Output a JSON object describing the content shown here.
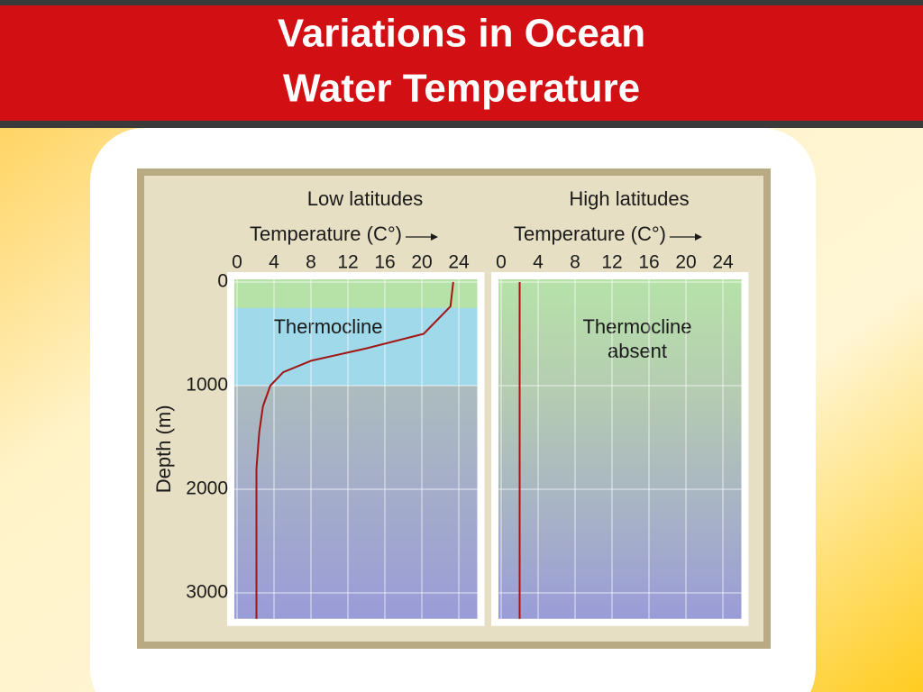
{
  "header": {
    "title": [
      "Variations in Ocean",
      "Water Temperature"
    ]
  },
  "chart_data": [
    {
      "type": "line",
      "title": "Low latitudes",
      "xlabel": "Temperature (C°)",
      "ylabel": "Depth (m)",
      "xlim": [
        0,
        26
      ],
      "xticks": [
        0,
        4,
        8,
        12,
        16,
        20,
        24
      ],
      "ylim": [
        0,
        3250
      ],
      "y_inverted": true,
      "yticks": [
        0,
        1000,
        2000,
        3000
      ],
      "grid": true,
      "series": [
        {
          "color": "#a31515",
          "x": [
            23.4,
            23.1,
            20.2,
            14,
            8,
            5,
            3.6,
            2.8,
            2.4,
            2.1,
            2.1
          ],
          "values": [
            0,
            235,
            500,
            640,
            760,
            870,
            1000,
            1200,
            1450,
            1800,
            3250
          ]
        }
      ],
      "annotations": [
        {
          "text": [
            "Thermocline"
          ],
          "y_range": [
            250,
            1000
          ]
        }
      ]
    },
    {
      "type": "line",
      "title": "High latitudes",
      "xlabel": "Temperature (C°)",
      "xlim": [
        0,
        26
      ],
      "xticks": [
        0,
        4,
        8,
        12,
        16,
        20,
        24
      ],
      "ylim": [
        0,
        3250
      ],
      "y_inverted": true,
      "grid": true,
      "series": [
        {
          "color": "#a31515",
          "x": [
            2,
            2
          ],
          "values": [
            0,
            3250
          ]
        }
      ],
      "annotations": [
        {
          "text": [
            "Thermocline",
            "absent"
          ]
        }
      ]
    }
  ]
}
